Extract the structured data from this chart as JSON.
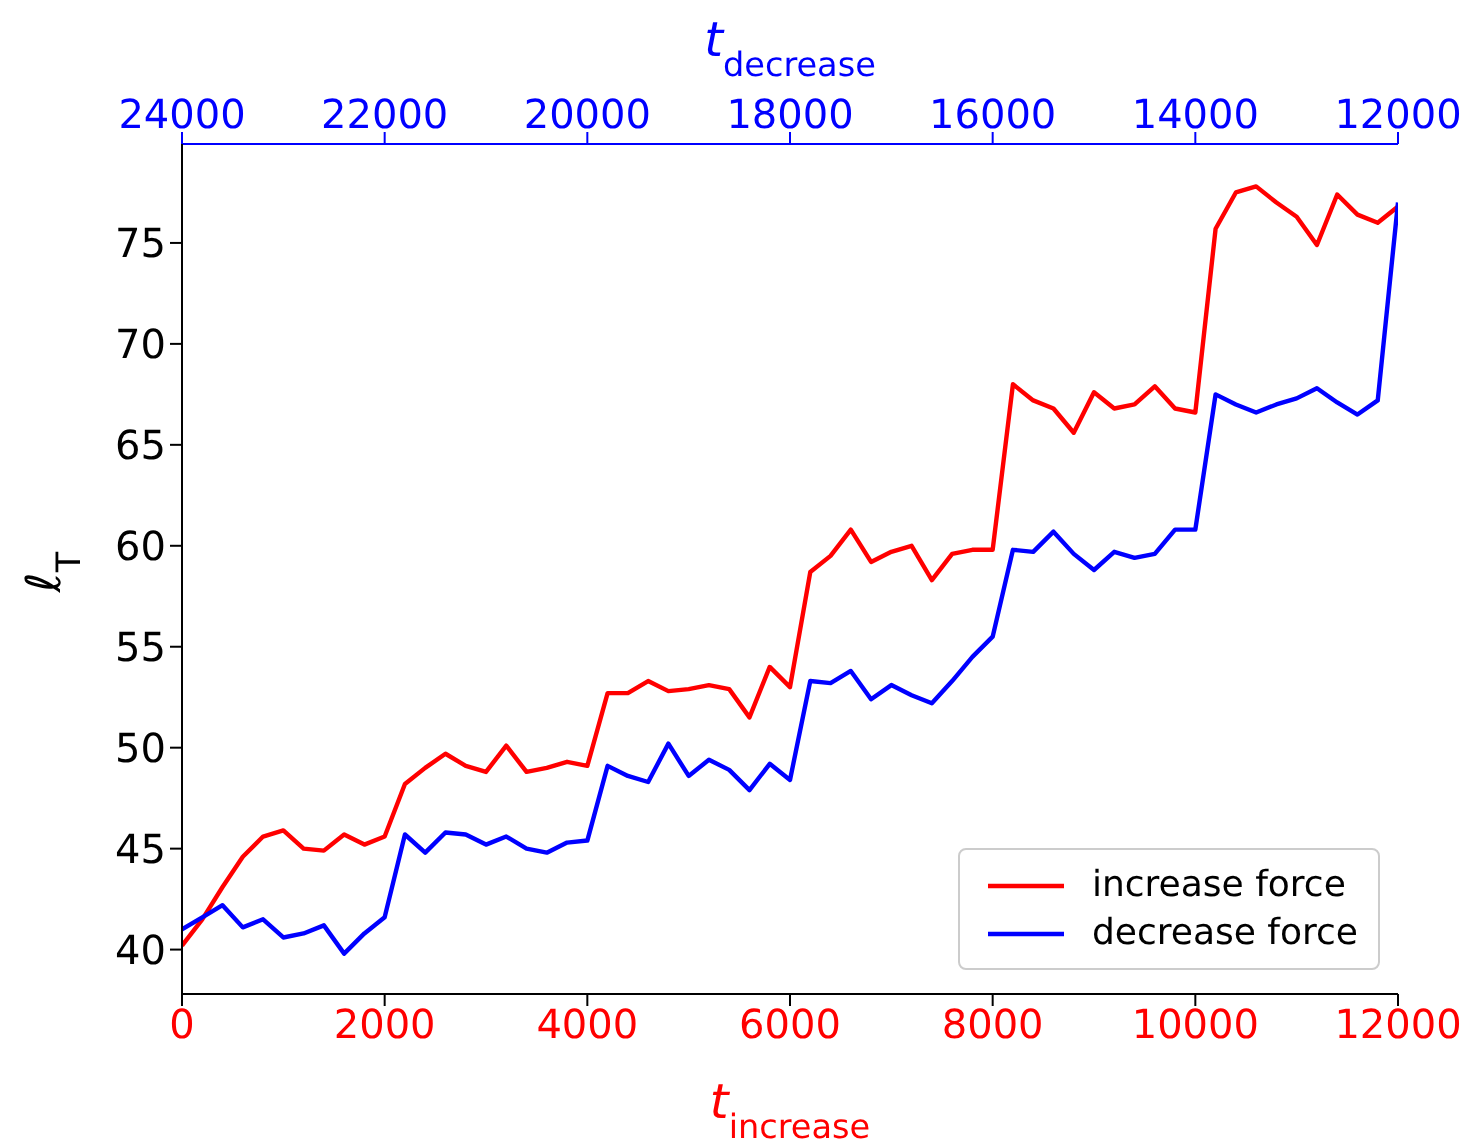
{
  "chart_data": {
    "type": "line",
    "xlabel": "t$_{increase}$",
    "ylabel": "ℓ$_{T}$",
    "x2label": "t$_{decrease}$",
    "x": [
      0,
      200,
      400,
      600,
      800,
      1000,
      1200,
      1400,
      1600,
      1800,
      2000,
      2200,
      2400,
      2600,
      2800,
      3000,
      3200,
      3400,
      3600,
      3800,
      4000,
      4200,
      4400,
      4600,
      4800,
      5000,
      5200,
      5400,
      5600,
      5800,
      6000,
      6200,
      6400,
      6600,
      6800,
      7000,
      7200,
      7400,
      7600,
      7800,
      8000,
      8200,
      8400,
      8600,
      8800,
      9000,
      9200,
      9400,
      9600,
      9800,
      10000,
      10200,
      10400,
      10600,
      10800,
      11000,
      11200,
      11400,
      11600,
      11800,
      12000
    ],
    "series": [
      {
        "name": "increase force",
        "color": "#ff0000",
        "values": [
          40.2,
          41.5,
          43.1,
          44.6,
          45.6,
          45.9,
          45.0,
          44.9,
          45.7,
          45.2,
          45.6,
          48.2,
          49.0,
          49.7,
          49.1,
          48.8,
          50.1,
          48.8,
          49.0,
          49.3,
          49.1,
          52.7,
          52.7,
          53.3,
          52.8,
          52.9,
          53.1,
          52.9,
          51.5,
          54.0,
          53.0,
          58.7,
          59.5,
          60.8,
          59.2,
          59.7,
          60.0,
          58.3,
          59.6,
          59.8,
          59.8,
          68.0,
          67.2,
          66.8,
          65.6,
          67.6,
          66.8,
          67.0,
          67.9,
          66.8,
          66.6,
          75.7,
          77.5,
          77.8,
          77.0,
          76.3,
          74.9,
          77.4,
          76.4,
          76.0,
          76.8
        ]
      },
      {
        "name": "decrease force",
        "color": "#0000ff",
        "values": [
          41.0,
          41.6,
          42.2,
          41.1,
          41.5,
          40.6,
          40.8,
          41.2,
          39.8,
          40.8,
          41.6,
          45.7,
          44.8,
          45.8,
          45.7,
          45.2,
          45.6,
          45.0,
          44.8,
          45.3,
          45.4,
          49.1,
          48.6,
          48.3,
          50.2,
          48.6,
          49.4,
          48.9,
          47.9,
          49.2,
          48.4,
          53.3,
          53.2,
          53.8,
          52.4,
          53.1,
          52.6,
          52.2,
          53.3,
          54.5,
          55.5,
          59.8,
          59.7,
          60.7,
          59.6,
          58.8,
          59.7,
          59.4,
          59.6,
          60.8,
          60.8,
          67.5,
          67.0,
          66.6,
          67.0,
          67.3,
          67.8,
          67.1,
          66.5,
          67.2,
          77.0
        ]
      }
    ],
    "xlim": [
      0,
      12000
    ],
    "xticks": [
      0,
      2000,
      4000,
      6000,
      8000,
      10000,
      12000
    ],
    "x2lim": [
      24000,
      12000
    ],
    "x2ticks": [
      24000,
      22000,
      20000,
      18000,
      16000,
      14000,
      12000
    ],
    "ylim": [
      37.8,
      79.9
    ],
    "yticks": [
      40,
      45,
      50,
      55,
      60,
      65,
      70,
      75
    ],
    "grid": false,
    "legend": "bottom right",
    "marker": "none",
    "line_style": "solid"
  }
}
